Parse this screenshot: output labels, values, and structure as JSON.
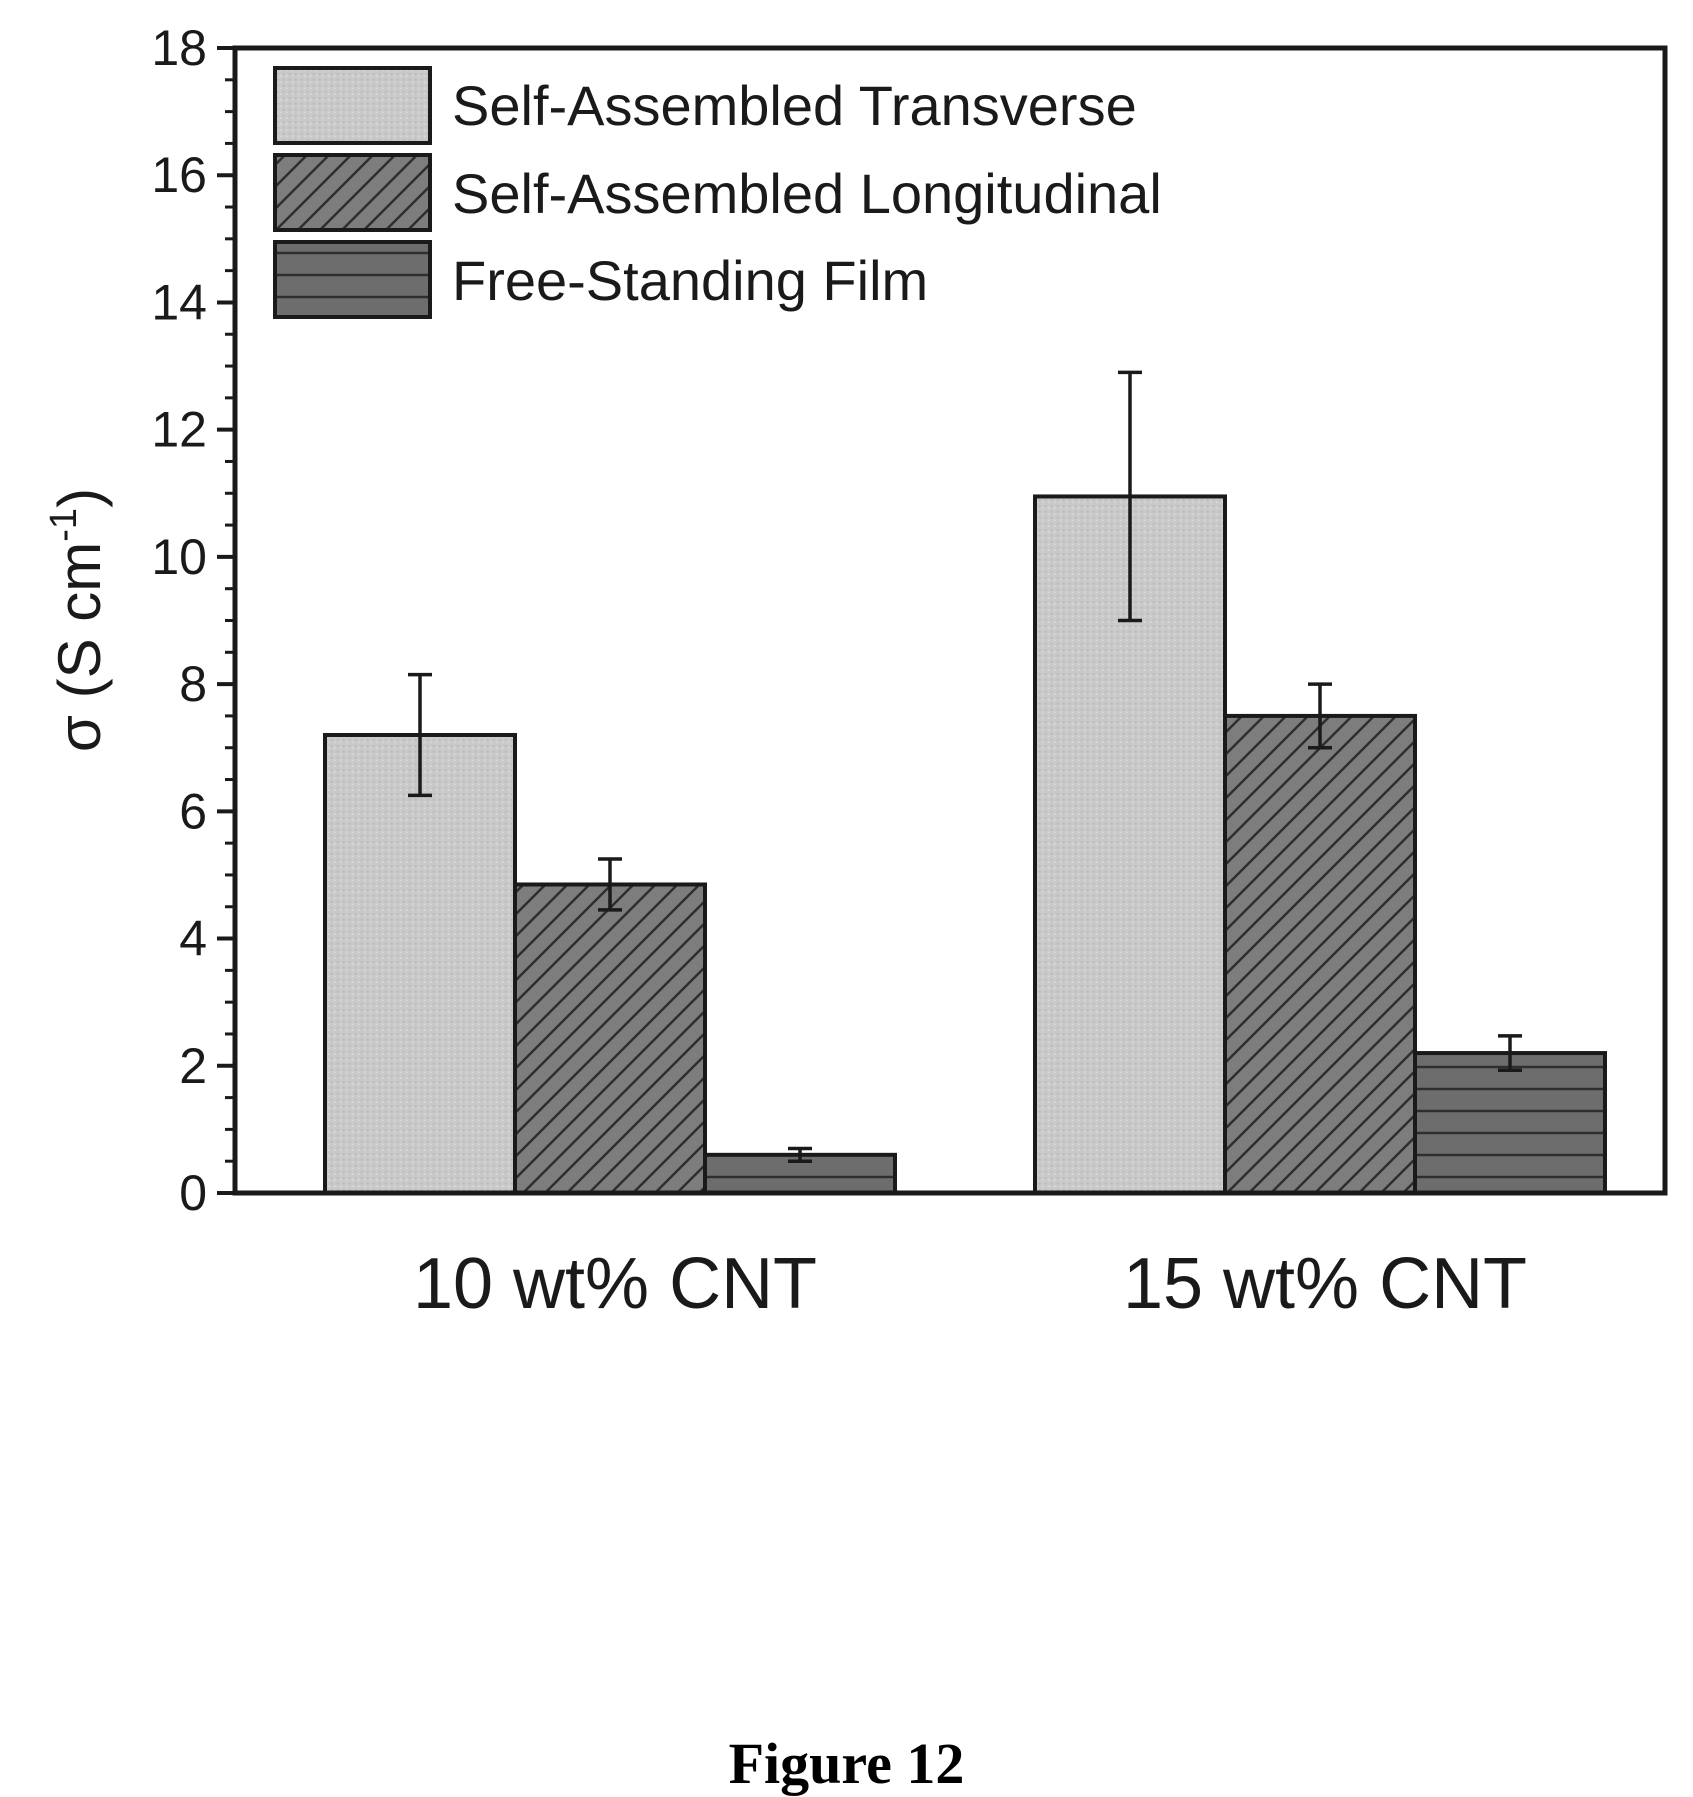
{
  "chart_data": {
    "type": "bar",
    "categories": [
      "10 wt% CNT",
      "15 wt% CNT"
    ],
    "series": [
      {
        "name": "Self-Assembled Transverse",
        "values": [
          7.2,
          10.95
        ],
        "errors": [
          0.95,
          1.95
        ],
        "color": "#c9c9c9",
        "pattern": "solid"
      },
      {
        "name": "Self-Assembled Longitudinal",
        "values": [
          4.85,
          7.5
        ],
        "errors": [
          0.4,
          0.5
        ],
        "color": "#7d7d7d",
        "pattern": "diagonal"
      },
      {
        "name": "Free-Standing Film",
        "values": [
          0.6,
          2.2
        ],
        "errors": [
          0.1,
          0.27
        ],
        "color": "#6d6d6d",
        "pattern": "horizontal"
      }
    ],
    "ylabel": "σ (S cm",
    "ylabel_sup": "-1",
    "ylabel_close": ")",
    "ylim": [
      0,
      18
    ],
    "yticks": [
      "0",
      "2",
      "4",
      "6",
      "8",
      "10",
      "12",
      "14",
      "16",
      "18"
    ],
    "legend_position": "top-left",
    "grid": false
  },
  "caption": "Figure 12"
}
